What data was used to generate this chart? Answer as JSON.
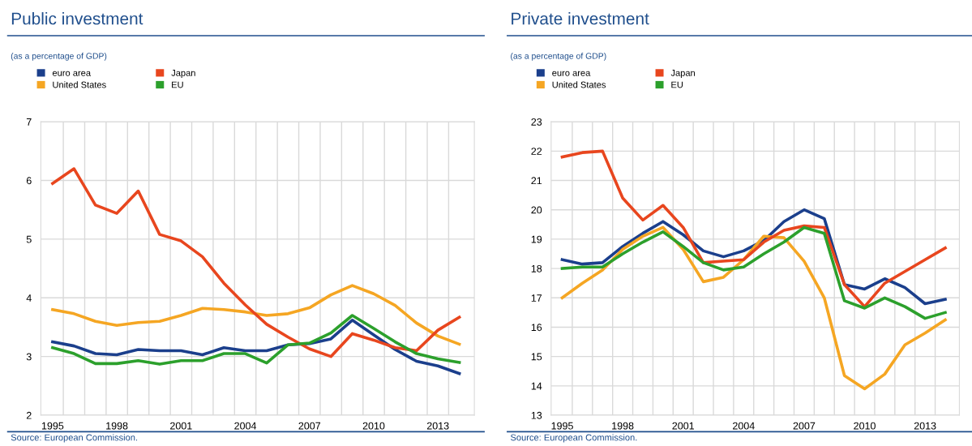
{
  "chart_data": [
    {
      "type": "line",
      "title": "Public investment",
      "subtitle": "(as a percentage of GDP)",
      "categories": [
        "1995",
        null,
        null,
        "1998",
        null,
        null,
        "2001",
        null,
        null,
        "2004",
        null,
        null,
        "2007",
        null,
        null,
        "2010",
        null,
        null,
        "2013",
        null
      ],
      "series": [
        {
          "name": "euro area",
          "color": "#1b3f8c",
          "values": [
            3.25,
            3.18,
            3.05,
            3.03,
            3.12,
            3.1,
            3.1,
            3.03,
            3.15,
            3.1,
            3.1,
            3.2,
            3.22,
            3.3,
            3.62,
            3.37,
            3.12,
            2.92,
            2.84,
            2.71
          ]
        },
        {
          "name": "United States",
          "color": "#f5a623",
          "values": [
            3.8,
            3.73,
            3.6,
            3.53,
            3.58,
            3.6,
            3.7,
            3.82,
            3.8,
            3.76,
            3.7,
            3.73,
            3.83,
            4.05,
            4.21,
            4.07,
            3.87,
            3.57,
            3.35,
            3.21
          ]
        },
        {
          "name": "Japan",
          "color": "#e8461e",
          "values": [
            5.95,
            6.2,
            5.58,
            5.44,
            5.82,
            5.08,
            4.97,
            4.7,
            4.25,
            3.88,
            3.55,
            3.33,
            3.13,
            3.0,
            3.39,
            3.28,
            3.15,
            3.1,
            3.45,
            3.67
          ]
        },
        {
          "name": "EU",
          "color": "#2ca02c",
          "values": [
            3.15,
            3.05,
            2.88,
            2.88,
            2.93,
            2.87,
            2.93,
            2.93,
            3.05,
            3.05,
            2.89,
            3.2,
            3.23,
            3.4,
            3.7,
            3.48,
            3.25,
            3.05,
            2.96,
            2.9
          ]
        }
      ],
      "ylim": [
        2,
        7
      ],
      "yticks": [
        2,
        3,
        4,
        5,
        6,
        7
      ],
      "grid": true,
      "legend": "top left",
      "marker": "none",
      "line_style": "solid",
      "annotations": [
        "Source: European Commission."
      ]
    },
    {
      "type": "line",
      "title": "Private investment",
      "subtitle": "(as a percentage of GDP)",
      "categories": [
        "1995",
        null,
        null,
        "1998",
        null,
        null,
        "2001",
        null,
        null,
        "2004",
        null,
        null,
        "2007",
        null,
        null,
        "2010",
        null,
        null,
        "2013",
        null
      ],
      "series": [
        {
          "name": "euro area",
          "color": "#1b3f8c",
          "values": [
            18.3,
            18.15,
            18.2,
            18.75,
            19.2,
            19.6,
            19.15,
            18.6,
            18.4,
            18.6,
            18.95,
            19.6,
            20.0,
            19.7,
            17.45,
            17.3,
            17.65,
            17.35,
            16.8,
            16.95
          ]
        },
        {
          "name": "United States",
          "color": "#f5a623",
          "values": [
            17.0,
            17.5,
            17.95,
            18.65,
            19.1,
            19.4,
            18.65,
            17.55,
            17.7,
            18.3,
            19.1,
            19.05,
            18.25,
            17.0,
            14.35,
            13.9,
            14.4,
            15.4,
            15.8,
            16.25
          ]
        },
        {
          "name": "Japan",
          "color": "#e8461e",
          "values": [
            21.8,
            21.95,
            22.0,
            20.4,
            19.65,
            20.15,
            19.4,
            18.2,
            18.25,
            18.3,
            18.9,
            19.3,
            19.45,
            19.4,
            17.45,
            16.7,
            17.5,
            17.9,
            18.3,
            18.7
          ]
        },
        {
          "name": "EU",
          "color": "#2ca02c",
          "values": [
            18.0,
            18.05,
            18.05,
            18.5,
            18.9,
            19.25,
            18.75,
            18.2,
            17.95,
            18.05,
            18.5,
            18.9,
            19.4,
            19.2,
            16.9,
            16.65,
            17.0,
            16.7,
            16.3,
            16.5
          ]
        }
      ],
      "ylim": [
        13,
        23
      ],
      "yticks": [
        13,
        14,
        15,
        16,
        17,
        18,
        19,
        20,
        21,
        22,
        23
      ],
      "grid": true,
      "legend": "top left",
      "marker": "none",
      "line_style": "solid",
      "annotations": [
        "Source: European Commission."
      ]
    }
  ]
}
